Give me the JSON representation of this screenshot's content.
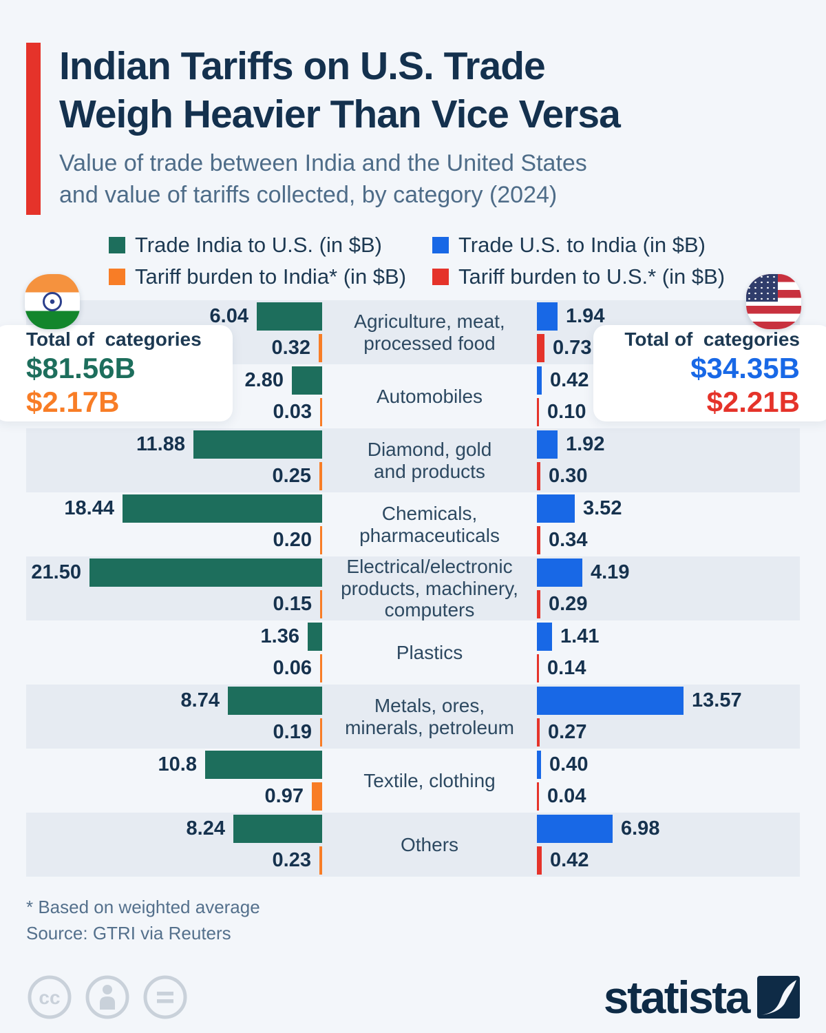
{
  "header": {
    "title_lines": [
      "Indian Tariffs on U.S. Trade",
      "Weigh Heavier Than Vice Versa"
    ],
    "subtitle_lines": [
      "Value of trade between India and the United States",
      "and value of tariffs collected, by category (2024)"
    ]
  },
  "legend": {
    "items": [
      {
        "label": "Trade India to U.S. (in $B)",
        "color": "#1d6e5c"
      },
      {
        "label": "Trade U.S. to India (in $B)",
        "color": "#1868e6"
      },
      {
        "label": "Tariff burden to India* (in $B)",
        "color": "#f87d26"
      },
      {
        "label": "Tariff burden to U.S.* (in $B)",
        "color": "#e5332a"
      }
    ]
  },
  "totals": {
    "india": {
      "label": "Total of  categories",
      "trade_total": "$81.56B",
      "tariff_total": "$2.17B",
      "trade_color": "#1d6e5c",
      "tariff_color": "#f87d26"
    },
    "us": {
      "label": "Total of  categories",
      "trade_total": "$34.35B",
      "tariff_total": "$2.21B",
      "trade_color": "#1868e6",
      "tariff_color": "#e5332a"
    }
  },
  "chart_data": {
    "type": "bar",
    "orientation": "horizontal-paired",
    "unit": "$B",
    "title": "Value of trade between India and the United States and value of tariffs collected, by category (2024)",
    "categories": [
      "Agriculture, meat,\nprocessed food",
      "Automobiles",
      "Diamond, gold\nand products",
      "Chemicals,\npharmaceuticals",
      "Electrical/electronic\nproducts, machinery,\ncomputers",
      "Plastics",
      "Metals, ores,\nminerals, petroleum",
      "Textile, clothing",
      "Others"
    ],
    "series": [
      {
        "name": "Trade India to U.S. (in $B)",
        "side": "left",
        "role": "trade",
        "color": "#1d6e5c",
        "values": [
          6.04,
          2.8,
          11.88,
          18.44,
          21.5,
          1.36,
          8.74,
          10.8,
          8.24
        ],
        "labels": [
          "6.04",
          "2.80",
          "11.88",
          "18.44",
          "21.50",
          "1.36",
          "8.74",
          "10.8",
          "8.24"
        ]
      },
      {
        "name": "Tariff burden to India* (in $B)",
        "side": "left",
        "role": "tariff",
        "color": "#f87d26",
        "values": [
          0.32,
          0.03,
          0.25,
          0.2,
          0.15,
          0.06,
          0.19,
          0.97,
          0.23
        ],
        "labels": [
          "0.32",
          "0.03",
          "0.25",
          "0.20",
          "0.15",
          "0.06",
          "0.19",
          "0.97",
          "0.23"
        ]
      },
      {
        "name": "Trade U.S. to India (in $B)",
        "side": "right",
        "role": "trade",
        "color": "#1868e6",
        "values": [
          1.94,
          0.42,
          1.92,
          3.52,
          4.19,
          1.41,
          13.57,
          0.4,
          6.98
        ],
        "labels": [
          "1.94",
          "0.42",
          "1.92",
          "3.52",
          "4.19",
          "1.41",
          "13.57",
          "0.40",
          "6.98"
        ]
      },
      {
        "name": "Tariff burden to U.S.* (in $B)",
        "side": "right",
        "role": "tariff",
        "color": "#e5332a",
        "values": [
          0.73,
          0.1,
          0.3,
          0.34,
          0.29,
          0.14,
          0.27,
          0.04,
          0.42
        ],
        "labels": [
          "0.73",
          "0.10",
          "0.30",
          "0.34",
          "0.29",
          "0.14",
          "0.27",
          "0.04",
          "0.42"
        ]
      }
    ],
    "legend_position": "top",
    "grid": false
  },
  "footer": {
    "footnote": "* Based on weighted average",
    "source": "Source: GTRI via Reuters"
  },
  "branding": {
    "logo_text": "statista"
  },
  "colors": {
    "background": "#f3f6fa",
    "row_band": "#e6ebf2",
    "title_navy": "#14314e",
    "subtitle_gray": "#4e6c88",
    "accent_red": "#e5332a"
  }
}
